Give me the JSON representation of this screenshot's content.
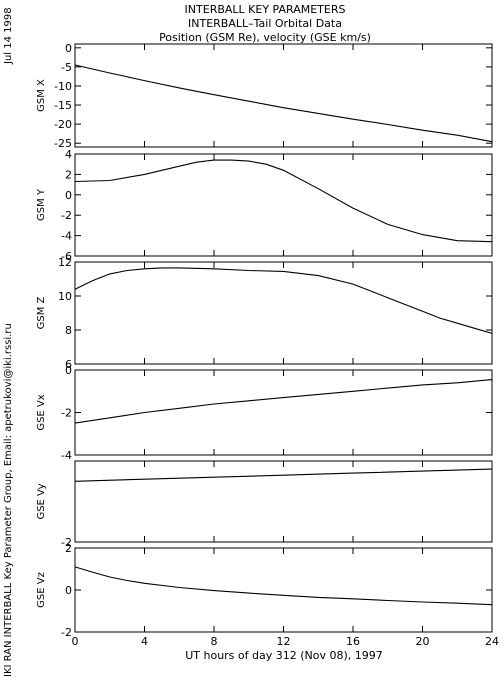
{
  "header": {
    "title_line1": "INTERBALL KEY PARAMETERS",
    "title_line2": "INTERBALL–Tail Orbital Data",
    "title_line3": "Position (GSM Re), velocity (GSE km/s)",
    "side_date": "Jul 14 1998",
    "side_credit": "IKI RAN INTERBALL Key Parameter Group, Email: apetrukovi@iki.rssi.ru"
  },
  "chart_data": {
    "type": "line",
    "x": {
      "label": "UT hours of day 312 (Nov 08), 1997",
      "range": [
        0,
        24
      ],
      "ticks": [
        0,
        4,
        8,
        12,
        16,
        20,
        24
      ],
      "tick_labels": [
        "0",
        "4",
        "8",
        "12",
        "16",
        "20",
        "24"
      ]
    },
    "panels": [
      {
        "ylabel": "GSM X",
        "ylim": [
          -26,
          1
        ],
        "yticks": [
          0,
          -5,
          -10,
          -15,
          -20,
          -25
        ],
        "ytick_labels": [
          "0",
          "-5",
          "-10",
          "-15",
          "-20",
          "-25"
        ],
        "x": [
          0,
          2,
          4,
          6,
          8,
          10,
          12,
          14,
          16,
          18,
          20,
          22,
          24
        ],
        "y": [
          -4.5,
          -6.6,
          -8.6,
          -10.5,
          -12.3,
          -14.0,
          -15.7,
          -17.2,
          -18.7,
          -20.1,
          -21.6,
          -22.9,
          -24.6
        ]
      },
      {
        "ylabel": "GSM Y",
        "ylim": [
          -6,
          4
        ],
        "yticks": [
          4,
          2,
          0,
          -2,
          -4,
          -6
        ],
        "ytick_labels": [
          "4",
          "2",
          "0",
          "-2",
          "-4",
          "-6"
        ],
        "x": [
          0,
          2,
          4,
          6,
          7,
          8,
          9,
          10,
          11,
          12,
          14,
          16,
          18,
          20,
          22,
          24
        ],
        "y": [
          1.3,
          1.4,
          2.0,
          2.8,
          3.2,
          3.4,
          3.4,
          3.3,
          3.0,
          2.4,
          0.6,
          -1.3,
          -2.9,
          -3.9,
          -4.5,
          -4.6
        ]
      },
      {
        "ylabel": "GSM Z",
        "ylim": [
          6,
          12
        ],
        "yticks": [
          12,
          10,
          8,
          6
        ],
        "ytick_labels": [
          "12",
          "10",
          "8",
          "6"
        ],
        "x": [
          0,
          1,
          2,
          3,
          4,
          5,
          6,
          8,
          10,
          12,
          14,
          16,
          17,
          18,
          19,
          20,
          21,
          22,
          23,
          24
        ],
        "y": [
          10.4,
          10.9,
          11.3,
          11.5,
          11.6,
          11.65,
          11.65,
          11.6,
          11.5,
          11.45,
          11.2,
          10.7,
          10.3,
          9.9,
          9.5,
          9.1,
          8.7,
          8.4,
          8.1,
          7.8
        ]
      },
      {
        "ylabel": "GSE Vx",
        "ylim": [
          -4,
          0
        ],
        "yticks": [
          0,
          -2,
          -4
        ],
        "ytick_labels": [
          "0",
          "-2",
          "-4"
        ],
        "x": [
          0,
          2,
          4,
          6,
          8,
          10,
          12,
          14,
          16,
          18,
          20,
          22,
          24
        ],
        "y": [
          -2.5,
          -2.25,
          -2.0,
          -1.8,
          -1.6,
          -1.45,
          -1.3,
          -1.15,
          -1.0,
          -0.85,
          -0.7,
          -0.6,
          -0.45
        ]
      },
      {
        "ylabel": "GSE Vy",
        "ylim": [
          -2,
          0
        ],
        "yticks": [
          -2
        ],
        "ytick_labels": [
          "-2"
        ],
        "x": [
          0,
          4,
          8,
          12,
          16,
          20,
          24
        ],
        "y": [
          -0.5,
          -0.45,
          -0.4,
          -0.35,
          -0.3,
          -0.25,
          -0.2
        ]
      },
      {
        "ylabel": "GSE Vz",
        "ylim": [
          -2,
          2
        ],
        "yticks": [
          2,
          0,
          -2
        ],
        "ytick_labels": [
          "2",
          "0",
          "-2"
        ],
        "x": [
          0,
          1,
          2,
          3,
          4,
          6,
          8,
          10,
          12,
          14,
          16,
          18,
          20,
          22,
          24
        ],
        "y": [
          1.1,
          0.85,
          0.62,
          0.45,
          0.32,
          0.12,
          -0.03,
          -0.15,
          -0.25,
          -0.35,
          -0.42,
          -0.5,
          -0.57,
          -0.63,
          -0.7
        ]
      }
    ]
  }
}
